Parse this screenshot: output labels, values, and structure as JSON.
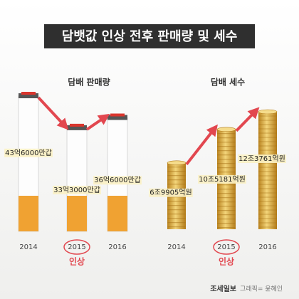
{
  "title": "담뱃값 인상 전후 판매량 및 세수",
  "chart_data": [
    {
      "type": "cigarette",
      "title": "담배 판매량",
      "categories": [
        "2014",
        "2015",
        "2016"
      ],
      "values": [
        4360000000,
        3330000000,
        3660000000
      ],
      "value_labels": [
        "43억6000만갑",
        "33억3000만갑",
        "36억6000만갑"
      ],
      "highlight_index": 1,
      "annotation": "인상",
      "color": "#f0a232"
    },
    {
      "type": "coins",
      "title": "담배 세수",
      "categories": [
        "2014",
        "2015",
        "2016"
      ],
      "values": [
        6990500000000,
        10518100000000,
        12376100000000
      ],
      "value_labels": [
        "6조9905억원",
        "10조5181억원",
        "12조3761억원"
      ],
      "highlight_index": 1,
      "annotation": "인상",
      "color": "#d9a62e"
    }
  ],
  "footer": {
    "source": "조세일보",
    "credit": "그래픽= 윤혜인"
  }
}
